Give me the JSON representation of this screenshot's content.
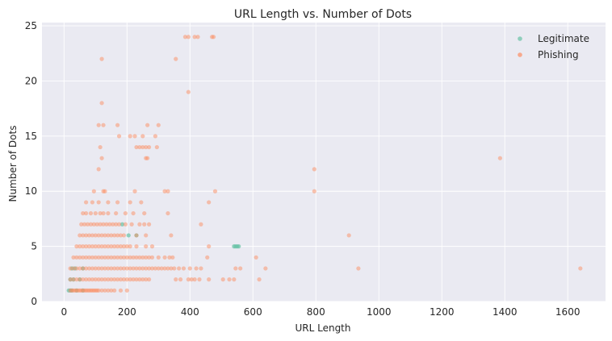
{
  "chart_data": {
    "type": "scatter",
    "title": "URL Length vs. Number of Dots",
    "xlabel": "URL Length",
    "ylabel": "Number of Dots",
    "xlim": [
      -70,
      1720
    ],
    "ylim": [
      0,
      25.3
    ],
    "xticks": [
      0,
      200,
      400,
      600,
      800,
      1000,
      1200,
      1400,
      1600
    ],
    "yticks": [
      0,
      5,
      10,
      15,
      20,
      25
    ],
    "grid": true,
    "legend_position": "top-right",
    "colors": {
      "background": "#eaeaf2",
      "grid": "#ffffff",
      "legitimate": "#66c2a5",
      "phishing": "#fc8d62"
    },
    "series": [
      {
        "name": "Legitimate",
        "color": "#66c2a5",
        "points": [
          [
            15,
            1
          ],
          [
            20,
            1
          ],
          [
            25,
            1
          ],
          [
            40,
            1
          ],
          [
            60,
            1
          ],
          [
            20,
            2
          ],
          [
            30,
            2
          ],
          [
            50,
            2
          ],
          [
            25,
            3
          ],
          [
            35,
            3
          ],
          [
            60,
            3
          ],
          [
            185,
            7
          ],
          [
            205,
            6
          ],
          [
            230,
            6
          ],
          [
            540,
            5
          ],
          [
            545,
            5
          ],
          [
            550,
            5
          ],
          [
            555,
            5
          ]
        ]
      },
      {
        "name": "Phishing",
        "color": "#fc8d62",
        "points": [
          [
            20,
            1
          ],
          [
            25,
            1
          ],
          [
            30,
            1
          ],
          [
            35,
            1
          ],
          [
            40,
            1
          ],
          [
            45,
            1
          ],
          [
            50,
            1
          ],
          [
            55,
            1
          ],
          [
            60,
            1
          ],
          [
            65,
            1
          ],
          [
            70,
            1
          ],
          [
            75,
            1
          ],
          [
            80,
            1
          ],
          [
            85,
            1
          ],
          [
            90,
            1
          ],
          [
            95,
            1
          ],
          [
            100,
            1
          ],
          [
            105,
            1
          ],
          [
            110,
            1
          ],
          [
            120,
            1
          ],
          [
            130,
            1
          ],
          [
            140,
            1
          ],
          [
            150,
            1
          ],
          [
            160,
            1
          ],
          [
            180,
            1
          ],
          [
            200,
            1
          ],
          [
            20,
            2
          ],
          [
            30,
            2
          ],
          [
            40,
            2
          ],
          [
            50,
            2
          ],
          [
            60,
            2
          ],
          [
            70,
            2
          ],
          [
            80,
            2
          ],
          [
            90,
            2
          ],
          [
            100,
            2
          ],
          [
            110,
            2
          ],
          [
            120,
            2
          ],
          [
            130,
            2
          ],
          [
            140,
            2
          ],
          [
            150,
            2
          ],
          [
            160,
            2
          ],
          [
            170,
            2
          ],
          [
            180,
            2
          ],
          [
            190,
            2
          ],
          [
            200,
            2
          ],
          [
            210,
            2
          ],
          [
            220,
            2
          ],
          [
            230,
            2
          ],
          [
            240,
            2
          ],
          [
            250,
            2
          ],
          [
            260,
            2
          ],
          [
            270,
            2
          ],
          [
            355,
            2
          ],
          [
            370,
            2
          ],
          [
            395,
            2
          ],
          [
            405,
            2
          ],
          [
            415,
            2
          ],
          [
            430,
            2
          ],
          [
            460,
            2
          ],
          [
            505,
            2
          ],
          [
            525,
            2
          ],
          [
            540,
            2
          ],
          [
            620,
            2
          ],
          [
            20,
            3
          ],
          [
            30,
            3
          ],
          [
            40,
            3
          ],
          [
            50,
            3
          ],
          [
            60,
            3
          ],
          [
            70,
            3
          ],
          [
            80,
            3
          ],
          [
            90,
            3
          ],
          [
            100,
            3
          ],
          [
            110,
            3
          ],
          [
            120,
            3
          ],
          [
            130,
            3
          ],
          [
            140,
            3
          ],
          [
            150,
            3
          ],
          [
            160,
            3
          ],
          [
            170,
            3
          ],
          [
            180,
            3
          ],
          [
            190,
            3
          ],
          [
            200,
            3
          ],
          [
            210,
            3
          ],
          [
            220,
            3
          ],
          [
            230,
            3
          ],
          [
            240,
            3
          ],
          [
            250,
            3
          ],
          [
            260,
            3
          ],
          [
            270,
            3
          ],
          [
            280,
            3
          ],
          [
            290,
            3
          ],
          [
            300,
            3
          ],
          [
            310,
            3
          ],
          [
            320,
            3
          ],
          [
            330,
            3
          ],
          [
            340,
            3
          ],
          [
            350,
            3
          ],
          [
            365,
            3
          ],
          [
            380,
            3
          ],
          [
            400,
            3
          ],
          [
            420,
            3
          ],
          [
            435,
            3
          ],
          [
            545,
            3
          ],
          [
            560,
            3
          ],
          [
            640,
            3
          ],
          [
            935,
            3
          ],
          [
            1640,
            3
          ],
          [
            30,
            4
          ],
          [
            40,
            4
          ],
          [
            50,
            4
          ],
          [
            60,
            4
          ],
          [
            70,
            4
          ],
          [
            80,
            4
          ],
          [
            90,
            4
          ],
          [
            100,
            4
          ],
          [
            110,
            4
          ],
          [
            120,
            4
          ],
          [
            130,
            4
          ],
          [
            140,
            4
          ],
          [
            150,
            4
          ],
          [
            160,
            4
          ],
          [
            170,
            4
          ],
          [
            180,
            4
          ],
          [
            190,
            4
          ],
          [
            200,
            4
          ],
          [
            210,
            4
          ],
          [
            220,
            4
          ],
          [
            230,
            4
          ],
          [
            240,
            4
          ],
          [
            250,
            4
          ],
          [
            260,
            4
          ],
          [
            270,
            4
          ],
          [
            280,
            4
          ],
          [
            300,
            4
          ],
          [
            320,
            4
          ],
          [
            335,
            4
          ],
          [
            345,
            4
          ],
          [
            455,
            4
          ],
          [
            610,
            4
          ],
          [
            40,
            5
          ],
          [
            50,
            5
          ],
          [
            60,
            5
          ],
          [
            70,
            5
          ],
          [
            80,
            5
          ],
          [
            90,
            5
          ],
          [
            100,
            5
          ],
          [
            110,
            5
          ],
          [
            120,
            5
          ],
          [
            130,
            5
          ],
          [
            140,
            5
          ],
          [
            150,
            5
          ],
          [
            160,
            5
          ],
          [
            170,
            5
          ],
          [
            180,
            5
          ],
          [
            190,
            5
          ],
          [
            200,
            5
          ],
          [
            210,
            5
          ],
          [
            230,
            5
          ],
          [
            260,
            5
          ],
          [
            280,
            5
          ],
          [
            460,
            5
          ],
          [
            50,
            6
          ],
          [
            60,
            6
          ],
          [
            70,
            6
          ],
          [
            80,
            6
          ],
          [
            90,
            6
          ],
          [
            100,
            6
          ],
          [
            110,
            6
          ],
          [
            120,
            6
          ],
          [
            130,
            6
          ],
          [
            140,
            6
          ],
          [
            150,
            6
          ],
          [
            160,
            6
          ],
          [
            170,
            6
          ],
          [
            180,
            6
          ],
          [
            190,
            6
          ],
          [
            230,
            6
          ],
          [
            260,
            6
          ],
          [
            340,
            6
          ],
          [
            905,
            6
          ],
          [
            55,
            7
          ],
          [
            65,
            7
          ],
          [
            75,
            7
          ],
          [
            85,
            7
          ],
          [
            95,
            7
          ],
          [
            105,
            7
          ],
          [
            115,
            7
          ],
          [
            125,
            7
          ],
          [
            135,
            7
          ],
          [
            145,
            7
          ],
          [
            155,
            7
          ],
          [
            165,
            7
          ],
          [
            175,
            7
          ],
          [
            195,
            7
          ],
          [
            215,
            7
          ],
          [
            240,
            7
          ],
          [
            255,
            7
          ],
          [
            270,
            7
          ],
          [
            435,
            7
          ],
          [
            60,
            8
          ],
          [
            70,
            8
          ],
          [
            85,
            8
          ],
          [
            100,
            8
          ],
          [
            115,
            8
          ],
          [
            125,
            8
          ],
          [
            140,
            8
          ],
          [
            165,
            8
          ],
          [
            195,
            8
          ],
          [
            220,
            8
          ],
          [
            255,
            8
          ],
          [
            330,
            8
          ],
          [
            70,
            9
          ],
          [
            90,
            9
          ],
          [
            110,
            9
          ],
          [
            140,
            9
          ],
          [
            170,
            9
          ],
          [
            210,
            9
          ],
          [
            245,
            9
          ],
          [
            460,
            9
          ],
          [
            95,
            10
          ],
          [
            125,
            10
          ],
          [
            130,
            10
          ],
          [
            225,
            10
          ],
          [
            320,
            10
          ],
          [
            330,
            10
          ],
          [
            480,
            10
          ],
          [
            795,
            10
          ],
          [
            110,
            12
          ],
          [
            795,
            12
          ],
          [
            120,
            13
          ],
          [
            260,
            13
          ],
          [
            265,
            13
          ],
          [
            1385,
            13
          ],
          [
            115,
            14
          ],
          [
            230,
            14
          ],
          [
            240,
            14
          ],
          [
            250,
            14
          ],
          [
            260,
            14
          ],
          [
            270,
            14
          ],
          [
            295,
            14
          ],
          [
            175,
            15
          ],
          [
            210,
            15
          ],
          [
            225,
            15
          ],
          [
            250,
            15
          ],
          [
            290,
            15
          ],
          [
            110,
            16
          ],
          [
            125,
            16
          ],
          [
            170,
            16
          ],
          [
            265,
            16
          ],
          [
            300,
            16
          ],
          [
            120,
            18
          ],
          [
            395,
            19
          ],
          [
            120,
            22
          ],
          [
            355,
            22
          ],
          [
            385,
            24
          ],
          [
            395,
            24
          ],
          [
            415,
            24
          ],
          [
            425,
            24
          ],
          [
            470,
            24
          ],
          [
            475,
            24
          ]
        ]
      }
    ]
  }
}
